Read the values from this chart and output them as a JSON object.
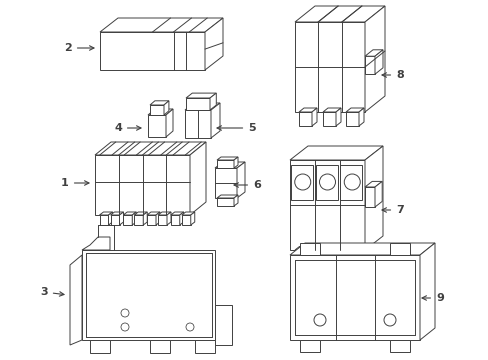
{
  "bg_color": "#ffffff",
  "line_color": "#404040",
  "label_color": "#000000",
  "figsize": [
    4.89,
    3.6
  ],
  "dpi": 100,
  "lw": 0.7
}
